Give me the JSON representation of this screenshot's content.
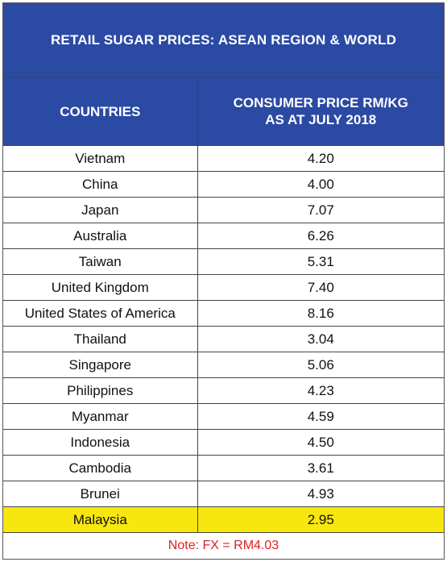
{
  "title": "RETAIL SUGAR PRICES: ASEAN REGION & WORLD",
  "columns": [
    "COUNTRIES",
    "CONSUMER PRICE RM/KG AS AT JULY 2018"
  ],
  "column_header_lines": [
    [
      "COUNTRIES"
    ],
    [
      "CONSUMER PRICE RM/KG",
      "AS AT JULY 2018"
    ]
  ],
  "rows": [
    {
      "country": "Vietnam",
      "price": "4.20"
    },
    {
      "country": "China",
      "price": "4.00"
    },
    {
      "country": "Japan",
      "price": "7.07"
    },
    {
      "country": "Australia",
      "price": "6.26"
    },
    {
      "country": "Taiwan",
      "price": "5.31"
    },
    {
      "country": "United Kingdom",
      "price": "7.40"
    },
    {
      "country": "United States of America",
      "price": "8.16"
    },
    {
      "country": "Thailand",
      "price": "3.04"
    },
    {
      "country": "Singapore",
      "price": "5.06"
    },
    {
      "country": "Philippines",
      "price": "4.23"
    },
    {
      "country": "Myanmar",
      "price": "4.59"
    },
    {
      "country": "Indonesia",
      "price": "4.50"
    },
    {
      "country": "Cambodia",
      "price": "3.61"
    },
    {
      "country": "Brunei",
      "price": "4.93"
    },
    {
      "country": "Malaysia",
      "price": "2.95",
      "highlighted": true
    }
  ],
  "note": "Note: FX = RM4.03",
  "colors": {
    "header_bg": "#2b4aa4",
    "header_text": "#ffffff",
    "highlight_bg": "#f7e70e",
    "note_text": "#e02020"
  }
}
